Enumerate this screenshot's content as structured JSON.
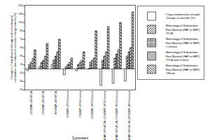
{
  "chart_data": {
    "type": "bar",
    "x_label": "Concretes",
    "y_label": "Change in 7-day flexural strength and mineralogical substitution raw material to concrete mixing material (%)",
    "categories": [
      "10%FAP+90%FCA",
      "15%FAP+85%FCA",
      "20%FAP+80%FCA",
      "5%EBP+95%Cement",
      "7%EBP+93%Cement",
      "10%EBP+90%Cement",
      "10%FAP+90%FCA+10%EBP+90%Cement",
      "15%FAP+85%FCA+15%EBP+85%Cement",
      "20%FAP+80%FCA+20%EBP+80%Cement"
    ],
    "series": [
      {
        "name": "7-day compressive strength Change in concrete (%)",
        "color": "#ffffff",
        "marker": "plain",
        "values": [
          -5,
          5,
          10,
          -15,
          -5,
          0,
          -40,
          -35,
          -30
        ]
      },
      {
        "name": "Mineralogy of Substitution Raw Material (FAP or EBP) / FCA",
        "color": "#ffffff",
        "marker": "diagonal",
        "values": [
          10,
          15,
          20,
          5,
          10,
          15,
          20,
          25,
          30
        ]
      },
      {
        "name": "Mineralogy of Substitution Raw Material (FAP or EBP) / Cement",
        "color": "#ffffff",
        "marker": "dots",
        "values": [
          15,
          20,
          30,
          10,
          15,
          20,
          30,
          35,
          40
        ]
      },
      {
        "name": "Mineralogy of Substitution Raw Material (FAP or EBP) / FCA and Cement",
        "color": "#ffffff",
        "marker": "cross",
        "values": [
          25,
          30,
          40,
          15,
          20,
          25,
          40,
          45,
          50
        ]
      },
      {
        "name": "Mineralogy of Substitution Raw Material (FAP or EBP) / Waste",
        "color": "#ffffff",
        "marker": "backdiagonal",
        "values": [
          45,
          60,
          70,
          25,
          40,
          90,
          100,
          110,
          135
        ]
      }
    ],
    "ylim": [
      -50,
      150
    ],
    "yticks": [
      -50,
      -30,
      -10,
      10,
      30,
      50,
      70,
      90,
      110,
      130,
      150
    ],
    "grid": false,
    "legend": "right"
  }
}
